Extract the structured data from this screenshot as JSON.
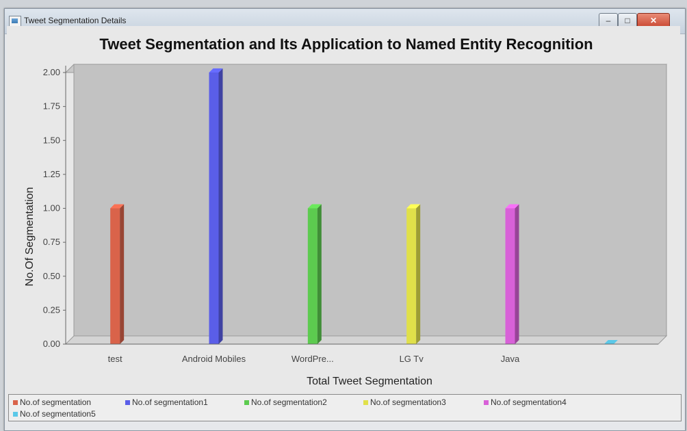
{
  "window": {
    "title": "Tweet Segmentation Details",
    "controls": {
      "minimize": "–",
      "maximize": "□",
      "close": "✕"
    }
  },
  "chart_data": {
    "type": "bar",
    "title": "Tweet Segmentation and Its Application to Named Entity Recognition",
    "xlabel": "Total Tweet Segmentation",
    "ylabel": "No.Of Segmentation",
    "categories": [
      "test",
      "Android Mobiles",
      "WordPre...",
      "LG Tv",
      "Java",
      ""
    ],
    "series": [
      {
        "name": "No.of segmentation",
        "color": "#d9634a",
        "values": [
          1,
          0,
          0,
          0,
          0,
          0
        ]
      },
      {
        "name": "No.of segmentation1",
        "color": "#5a5ee8",
        "values": [
          0,
          2,
          0,
          0,
          0,
          0
        ]
      },
      {
        "name": "No.of segmentation2",
        "color": "#5ccb4f",
        "values": [
          0,
          0,
          1,
          0,
          0,
          0
        ]
      },
      {
        "name": "No.of segmentation3",
        "color": "#e0e04a",
        "values": [
          0,
          0,
          0,
          1,
          0,
          0
        ]
      },
      {
        "name": "No.of segmentation4",
        "color": "#d861d8",
        "values": [
          0,
          0,
          0,
          0,
          1,
          0
        ]
      },
      {
        "name": "No.of segmentation5",
        "color": "#5bc8e8",
        "values": [
          0,
          0,
          0,
          0,
          0,
          0
        ]
      }
    ],
    "ylim": [
      0,
      2.0
    ],
    "yticks": [
      "0.00",
      "0.25",
      "0.50",
      "0.75",
      "1.00",
      "1.25",
      "1.50",
      "1.75",
      "2.00"
    ],
    "grid": false,
    "legend_position": "bottom",
    "style": "3d-bar"
  }
}
